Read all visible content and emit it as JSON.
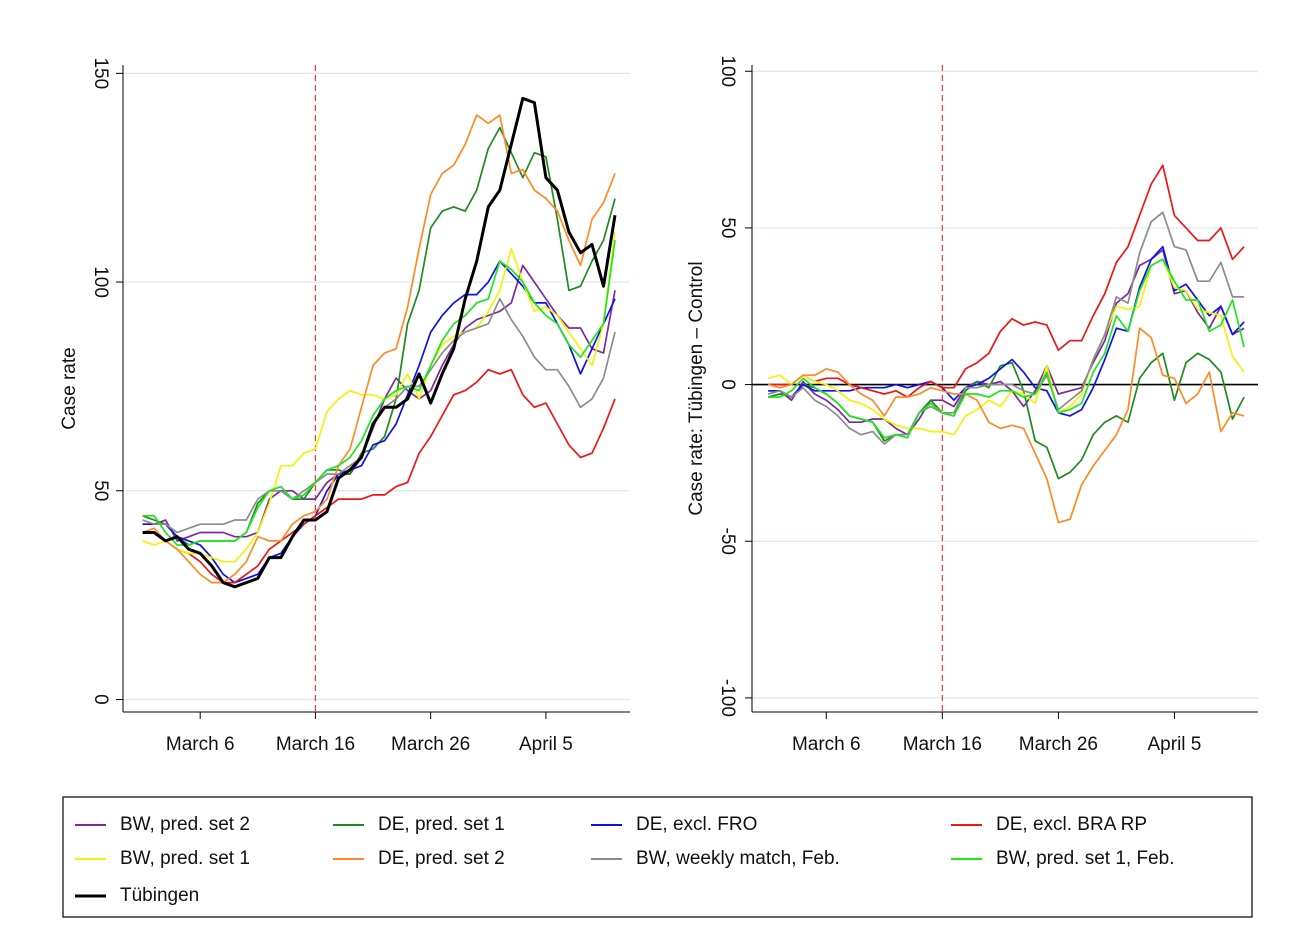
{
  "chart_data": [
    {
      "type": "line",
      "ylabel": "Case rate",
      "legend": "bottom",
      "x": [
        1,
        2,
        3,
        4,
        5,
        6,
        7,
        8,
        9,
        10,
        11,
        12,
        13,
        14,
        15,
        16,
        17,
        18,
        19,
        20,
        21,
        22,
        23,
        24,
        25,
        26,
        27,
        28,
        29,
        30,
        31,
        32,
        33,
        34,
        35,
        36,
        37,
        38,
        39,
        40,
        41,
        42
      ],
      "xlim": [
        -0.7,
        43.3
      ],
      "xticks": [
        {
          "value": 6,
          "label": "March 6"
        },
        {
          "value": 16,
          "label": "March 16"
        },
        {
          "value": 26,
          "label": "March 26"
        },
        {
          "value": 36,
          "label": "April 5"
        }
      ],
      "ylim": [
        -3,
        152
      ],
      "yticks": [
        0,
        50,
        100,
        150
      ],
      "grid": true,
      "vline": 16,
      "series": [
        {
          "name": "BW, pred. set 2",
          "color": "#7b2a9e",
          "values": [
            42,
            42,
            43,
            38,
            39,
            40,
            40,
            40,
            39,
            39,
            40,
            48,
            50,
            50,
            48,
            48,
            52,
            54,
            54,
            58,
            65,
            72,
            77,
            74,
            72,
            74,
            80,
            85,
            89,
            91,
            92,
            93,
            95,
            104,
            100,
            96,
            92,
            89,
            89,
            84,
            83,
            98
          ]
        },
        {
          "name": "DE, pred. set 1",
          "color": "#1f8a1f",
          "values": [
            44,
            43,
            42,
            39,
            37,
            38,
            38,
            38,
            38,
            40,
            47,
            50,
            50,
            48,
            48,
            52,
            55,
            55,
            54,
            59,
            60,
            63,
            72,
            90,
            98,
            113,
            117,
            118,
            117,
            122,
            132,
            137,
            131,
            125,
            131,
            130,
            115,
            98,
            99,
            105,
            110,
            120
          ]
        },
        {
          "name": "DE, excl. FRO",
          "color": "#1010ee",
          "values": [
            42,
            42,
            42,
            39,
            38,
            37,
            34,
            30,
            28,
            29,
            30,
            34,
            35,
            39,
            42,
            44,
            50,
            54,
            55,
            56,
            61,
            62,
            66,
            73,
            80,
            88,
            92,
            95,
            97,
            97,
            100,
            105,
            102,
            99,
            95,
            95,
            90,
            85,
            78,
            84,
            90,
            96
          ]
        },
        {
          "name": "DE, excl. BRA RP",
          "color": "#f01414",
          "values": [
            40,
            40,
            38,
            36,
            35,
            33,
            30,
            28,
            28,
            30,
            32,
            36,
            38,
            40,
            42,
            44,
            46,
            48,
            48,
            48,
            49,
            49,
            51,
            52,
            59,
            63,
            68,
            73,
            74,
            76,
            79,
            78,
            79,
            73,
            70,
            71,
            66,
            61,
            58,
            59,
            65,
            72
          ]
        },
        {
          "name": "BW, pred. set 1",
          "color": "#f2f20a",
          "values": [
            38,
            37,
            38,
            36,
            35,
            35,
            34,
            33,
            33,
            36,
            40,
            47,
            56,
            56,
            59,
            60,
            69,
            72,
            74,
            73,
            73,
            72,
            73,
            78,
            72,
            80,
            85,
            87,
            88,
            89,
            93,
            98,
            108,
            100,
            93,
            94,
            92,
            88,
            84,
            80,
            90,
            112
          ]
        },
        {
          "name": "DE, pred. set 2",
          "color": "#ff8a24",
          "values": [
            40,
            41,
            38,
            36,
            33,
            30,
            28,
            28,
            30,
            33,
            39,
            38,
            38,
            42,
            44,
            45,
            48,
            56,
            60,
            70,
            80,
            83,
            84,
            94,
            108,
            121,
            126,
            128,
            133,
            140,
            138,
            140,
            126,
            127,
            122,
            120,
            117,
            110,
            104,
            115,
            119,
            126
          ]
        },
        {
          "name": "BW, weekly match, Feb.",
          "color": "#8c8c8c",
          "values": [
            43,
            42,
            42,
            40,
            41,
            42,
            42,
            42,
            43,
            43,
            48,
            50,
            50,
            48,
            50,
            52,
            54,
            54,
            56,
            58,
            66,
            70,
            72,
            75,
            75,
            79,
            83,
            86,
            88,
            89,
            90,
            96,
            91,
            87,
            82,
            79,
            79,
            75,
            70,
            72,
            77,
            88
          ]
        },
        {
          "name": "BW, pred. set 1, Feb.",
          "color": "#1ee61e",
          "values": [
            44,
            44,
            40,
            37,
            37,
            38,
            38,
            38,
            38,
            40,
            46,
            50,
            51,
            48,
            49,
            52,
            55,
            56,
            58,
            62,
            68,
            72,
            74,
            75,
            74,
            80,
            86,
            90,
            92,
            95,
            96,
            105,
            103,
            100,
            95,
            92,
            90,
            85,
            82,
            86,
            90,
            110
          ]
        },
        {
          "name": "Tübingen",
          "color": "#000000",
          "linewidth": 3,
          "values": [
            40,
            40,
            38,
            39,
            36,
            35,
            32,
            28,
            27,
            28,
            29,
            34,
            34,
            39,
            43,
            43,
            45,
            53,
            55,
            58,
            66,
            70,
            70,
            72,
            78,
            71,
            78,
            84,
            96,
            105,
            118,
            122,
            133,
            144,
            143,
            125,
            122,
            112,
            107,
            109,
            99,
            116
          ]
        }
      ]
    },
    {
      "type": "line",
      "ylabel": "Case rate: Tübingen – Control",
      "x": [
        1,
        2,
        3,
        4,
        5,
        6,
        7,
        8,
        9,
        10,
        11,
        12,
        13,
        14,
        15,
        16,
        17,
        18,
        19,
        20,
        21,
        22,
        23,
        24,
        25,
        26,
        27,
        28,
        29,
        30,
        31,
        32,
        33,
        34,
        35,
        36,
        37,
        38,
        39,
        40,
        41,
        42
      ],
      "xlim": [
        -0.4,
        43.2
      ],
      "xticks": [
        {
          "value": 6,
          "label": "March 6"
        },
        {
          "value": 16,
          "label": "March 16"
        },
        {
          "value": 26,
          "label": "March 26"
        },
        {
          "value": 36,
          "label": "April 5"
        }
      ],
      "ylim": [
        -104.5,
        102
      ],
      "yticks": [
        -100,
        -50,
        0,
        50,
        100
      ],
      "grid": true,
      "vline": 16,
      "hline": 0,
      "series": [
        {
          "color": "#7b2a9e",
          "values": [
            -2,
            -2,
            -5,
            1,
            -3,
            -5,
            -8,
            -12,
            -12,
            -11,
            -11,
            -14,
            -16,
            -11,
            -5,
            -5,
            -7,
            -1,
            1,
            0,
            1,
            -2,
            -7,
            -2,
            6,
            -3,
            -2,
            -1,
            7,
            14,
            26,
            29,
            38,
            40,
            43,
            29,
            30,
            23,
            18,
            25,
            16,
            18
          ]
        },
        {
          "color": "#1f8a1f",
          "values": [
            -4,
            -3,
            -4,
            0,
            -1,
            -3,
            -6,
            -10,
            -11,
            -12,
            -18,
            -16,
            -16,
            -9,
            -5,
            -9,
            -10,
            -2,
            1,
            -1,
            6,
            7,
            -2,
            -18,
            -20,
            -30,
            -28,
            -24,
            -16,
            -12,
            -10,
            -12,
            2,
            7,
            10,
            -5,
            7,
            10,
            8,
            4,
            -11,
            -4
          ]
        },
        {
          "color": "#1010ee",
          "values": [
            -2,
            -2,
            -4,
            0,
            -2,
            -2,
            -2,
            -2,
            -1,
            -1,
            -1,
            0,
            -1,
            0,
            1,
            -1,
            -5,
            -1,
            0,
            2,
            5,
            8,
            4,
            -1,
            -2,
            -9,
            -10,
            -8,
            -1,
            8,
            18,
            17,
            31,
            40,
            44,
            30,
            32,
            27,
            22,
            25,
            16,
            20
          ]
        },
        {
          "color": "#f01414",
          "values": [
            0,
            0,
            0,
            3,
            1,
            2,
            2,
            0,
            -1,
            -2,
            -3,
            -2,
            -4,
            -1,
            1,
            -1,
            -1,
            5,
            7,
            10,
            17,
            21,
            19,
            20,
            19,
            11,
            14,
            14,
            22,
            29,
            39,
            44,
            54,
            64,
            70,
            54,
            50,
            46,
            46,
            50,
            40,
            44
          ]
        },
        {
          "color": "#f2f20a",
          "values": [
            2,
            3,
            0,
            3,
            1,
            0,
            -2,
            -5,
            -6,
            -8,
            -11,
            -13,
            -14,
            -14,
            -15,
            -15,
            -16,
            -10,
            -8,
            -5,
            -7,
            -2,
            -3,
            -6,
            6,
            -9,
            -7,
            -3,
            8,
            16,
            25,
            24,
            25,
            38,
            40,
            31,
            30,
            24,
            23,
            22,
            9,
            4
          ]
        },
        {
          "color": "#ff8a24",
          "values": [
            0,
            -1,
            0,
            3,
            3,
            5,
            4,
            0,
            -3,
            -5,
            -10,
            -4,
            -4,
            -3,
            -1,
            -2,
            -3,
            -3,
            -5,
            -12,
            -14,
            -13,
            -14,
            -22,
            -30,
            -44,
            -43,
            -32,
            -26,
            -21,
            -16,
            -8,
            18,
            15,
            3,
            2,
            -6,
            -3,
            4,
            -15,
            -9,
            -10
          ]
        },
        {
          "color": "#8c8c8c",
          "values": [
            -3,
            -2,
            -4,
            -1,
            -5,
            -7,
            -10,
            -14,
            -16,
            -15,
            -19,
            -16,
            -16,
            -9,
            -7,
            -9,
            -9,
            -1,
            -1,
            0,
            0,
            0,
            -2,
            -3,
            3,
            -8,
            -5,
            -2,
            8,
            16,
            28,
            26,
            42,
            52,
            55,
            44,
            43,
            33,
            33,
            39,
            28,
            28
          ]
        },
        {
          "color": "#1ee61e",
          "values": [
            -4,
            -4,
            -2,
            2,
            -1,
            -3,
            -6,
            -10,
            -11,
            -12,
            -17,
            -16,
            -17,
            -9,
            -6,
            -9,
            -10,
            -3,
            -3,
            -4,
            -2,
            -2,
            -4,
            -3,
            4,
            -9,
            -8,
            -6,
            4,
            10,
            22,
            17,
            30,
            38,
            40,
            33,
            27,
            27,
            17,
            19,
            27,
            12
          ]
        }
      ]
    }
  ]
}
